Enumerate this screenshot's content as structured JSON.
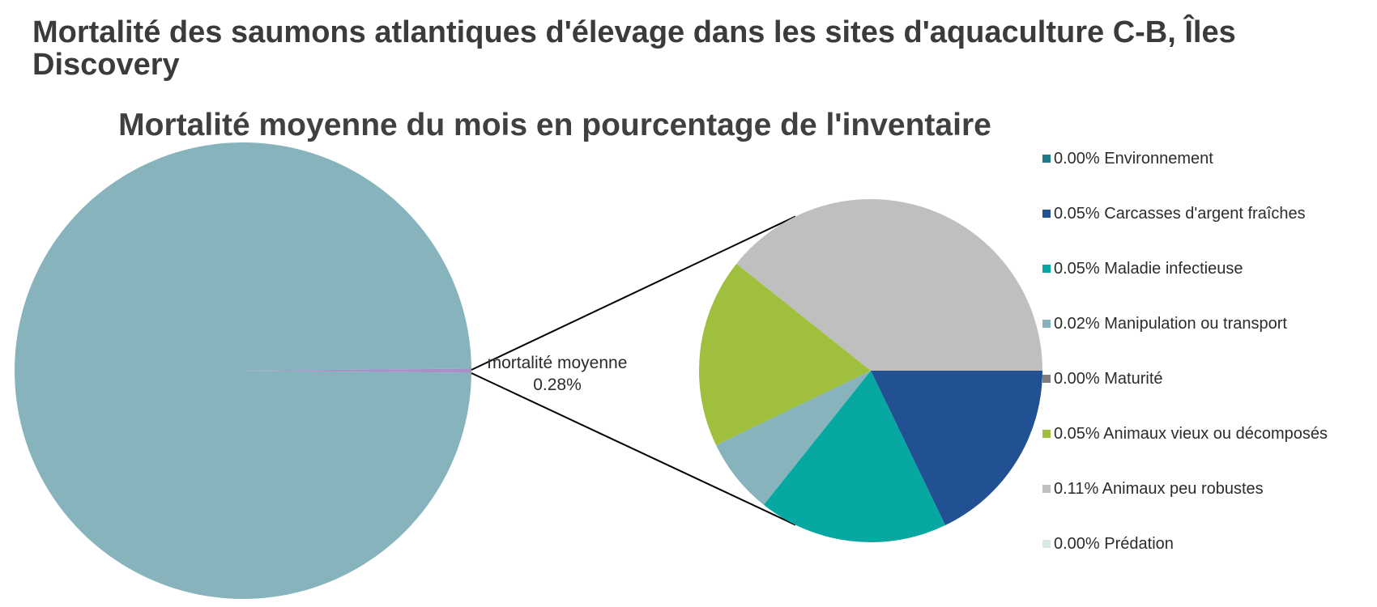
{
  "header": {
    "title": "Mortalité des saumons atlantiques d'élevage dans les sites d'aquaculture C-B, Îles Discovery"
  },
  "chart_data": {
    "type": "pie",
    "subtype": "pie-of-pie",
    "title": "Mortalité moyenne du mois en pourcentage de l'inventaire",
    "main_pie": {
      "slices": [
        {
          "label": "",
          "value": 99.72,
          "color": "#87b4bc"
        },
        {
          "label": "mortalité moyenne",
          "value": 0.28,
          "value_label": "0.28%",
          "color": "#a88fc8"
        }
      ]
    },
    "secondary_pie": {
      "slices": [
        {
          "label": "Environnement",
          "value": 0.0,
          "value_label": "0.00%",
          "color": "#1e7c8a"
        },
        {
          "label": "Carcasses d'argent fraîches",
          "value": 0.05,
          "value_label": "0.05%",
          "color": "#225193"
        },
        {
          "label": "Maladie infectieuse",
          "value": 0.05,
          "value_label": "0.05%",
          "color": "#07a8a1"
        },
        {
          "label": "Manipulation ou transport",
          "value": 0.02,
          "value_label": "0.02%",
          "color": "#87b4bc"
        },
        {
          "label": "Maturité",
          "value": 0.0,
          "value_label": "0.00%",
          "color": "#7f7f7f"
        },
        {
          "label": "Animaux vieux ou décomposés",
          "value": 0.05,
          "value_label": "0.05%",
          "color": "#a0bf3c"
        },
        {
          "label": "Animaux peu robustes",
          "value": 0.11,
          "value_label": "0.11%",
          "color": "#bfbfbf"
        },
        {
          "label": "Prédation",
          "value": 0.0,
          "value_label": "0.00%",
          "color": "#d6ebe6"
        }
      ]
    },
    "legend": {
      "position": "right",
      "items": [
        {
          "text": "0.00% Environnement",
          "color": "#1e7c8a"
        },
        {
          "text": "0.05% Carcasses d'argent fraîches",
          "color": "#225193"
        },
        {
          "text": "0.05% Maladie infectieuse",
          "color": "#07a8a1"
        },
        {
          "text": "0.02% Manipulation ou transport",
          "color": "#87b4bc"
        },
        {
          "text": "0.00% Maturité",
          "color": "#7f7f7f"
        },
        {
          "text": "0.05% Animaux vieux ou décomposés",
          "color": "#a0bf3c"
        },
        {
          "text": "0.11% Animaux peu robustes",
          "color": "#bfbfbf"
        },
        {
          "text": "0.00% Prédation",
          "color": "#d6ebe6"
        }
      ]
    },
    "data_label": {
      "line1": "mortalité moyenne",
      "line2": "0.28%"
    }
  }
}
